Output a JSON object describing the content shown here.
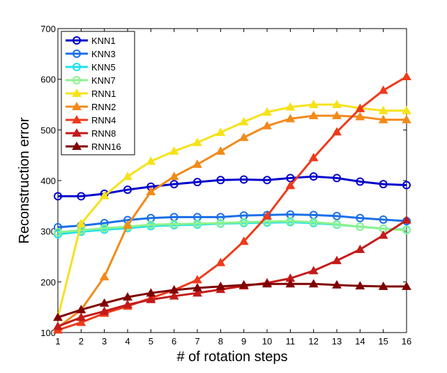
{
  "chart_data": {
    "type": "line",
    "title": "",
    "xlabel": "# of rotation steps",
    "ylabel": "Reconstruction error",
    "x": [
      1,
      2,
      3,
      4,
      5,
      6,
      7,
      8,
      9,
      10,
      11,
      12,
      13,
      14,
      15,
      16
    ],
    "xlim": [
      1,
      16
    ],
    "ylim": [
      100,
      700
    ],
    "yticks": [
      100,
      200,
      300,
      400,
      500,
      600,
      700
    ],
    "grid": false,
    "legend_position": "top-left",
    "series": [
      {
        "name": "KNN1",
        "color": "#0000cc",
        "marker": "circle",
        "values": [
          369,
          369,
          374,
          382,
          388,
          393,
          397,
          401,
          402,
          401,
          405,
          408,
          405,
          398,
          393,
          391
        ]
      },
      {
        "name": "KNN3",
        "color": "#1a6fe8",
        "marker": "circle",
        "values": [
          308,
          311,
          316,
          322,
          326,
          328,
          328,
          328,
          331,
          332,
          333,
          332,
          330,
          326,
          323,
          320
        ]
      },
      {
        "name": "KNN5",
        "color": "#22e0ee",
        "marker": "circle",
        "values": [
          294,
          299,
          303,
          306,
          310,
          312,
          313,
          315,
          316,
          317,
          318,
          316,
          313,
          309,
          305,
          303
        ]
      },
      {
        "name": "KNN7",
        "color": "#8cf28c",
        "marker": "circle",
        "values": [
          298,
          302,
          306,
          309,
          313,
          314,
          315,
          316,
          318,
          319,
          320,
          318,
          314,
          309,
          305,
          302
        ]
      },
      {
        "name": "RNN1",
        "color": "#f6e21a",
        "marker": "triangle",
        "values": [
          130,
          315,
          370,
          408,
          438,
          458,
          475,
          495,
          516,
          535,
          545,
          550,
          550,
          543,
          538,
          538
        ]
      },
      {
        "name": "RNN2",
        "color": "#f28a1a",
        "marker": "triangle",
        "values": [
          110,
          145,
          210,
          312,
          378,
          408,
          432,
          458,
          485,
          508,
          522,
          528,
          528,
          526,
          520,
          520
        ]
      },
      {
        "name": "RNN4",
        "color": "#ee3a1a",
        "marker": "triangle",
        "values": [
          105,
          120,
          138,
          152,
          168,
          184,
          204,
          238,
          280,
          330,
          390,
          445,
          496,
          542,
          578,
          605
        ]
      },
      {
        "name": "RNN8",
        "color": "#c41a1a",
        "marker": "triangle",
        "values": [
          112,
          130,
          142,
          155,
          165,
          172,
          178,
          185,
          192,
          198,
          207,
          222,
          242,
          264,
          292,
          322
        ]
      },
      {
        "name": "RNN16",
        "color": "#800000",
        "marker": "triangle",
        "values": [
          130,
          145,
          158,
          170,
          178,
          184,
          188,
          191,
          194,
          196,
          196,
          196,
          194,
          192,
          191,
          191
        ]
      }
    ]
  }
}
